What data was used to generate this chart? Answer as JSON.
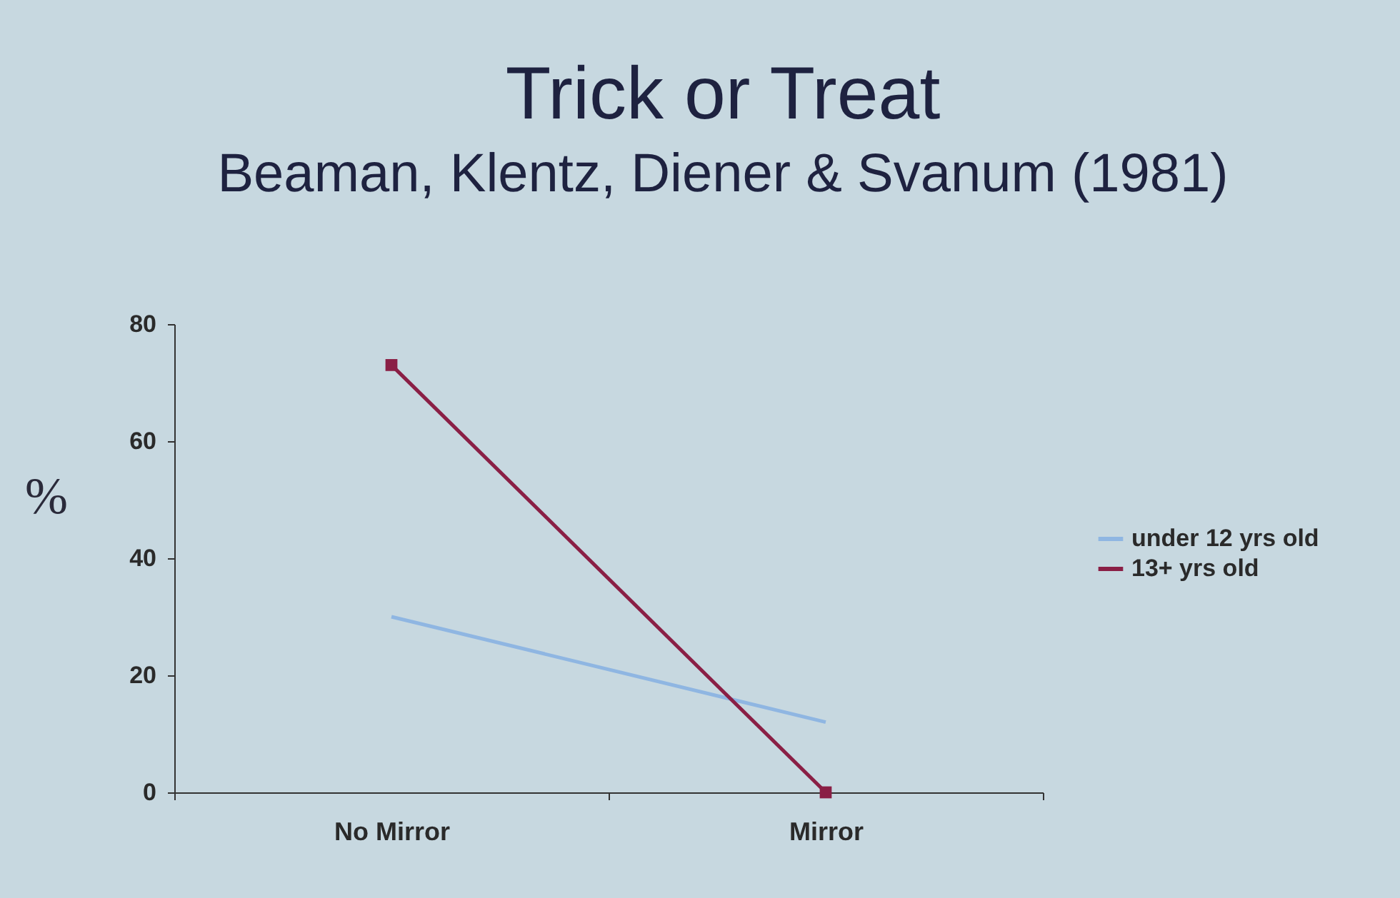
{
  "chart_data": {
    "type": "line",
    "title": "Trick or Treat",
    "subtitle": "Beaman, Klentz, Diener & Svanum (1981)",
    "ylabel": "%",
    "categories": [
      "No Mirror",
      "Mirror"
    ],
    "series": [
      {
        "name": "under 12 yrs old",
        "color": "#8fb6e2",
        "values": [
          30,
          12
        ],
        "marker": "none"
      },
      {
        "name": "13+ yrs old",
        "color": "#8a1f45",
        "values": [
          73,
          0
        ],
        "marker": "square"
      }
    ],
    "ylim": [
      0,
      80
    ],
    "yticks": [
      0,
      20,
      40,
      60,
      80
    ],
    "grid": false,
    "legend": "right",
    "line_style": "solid"
  }
}
